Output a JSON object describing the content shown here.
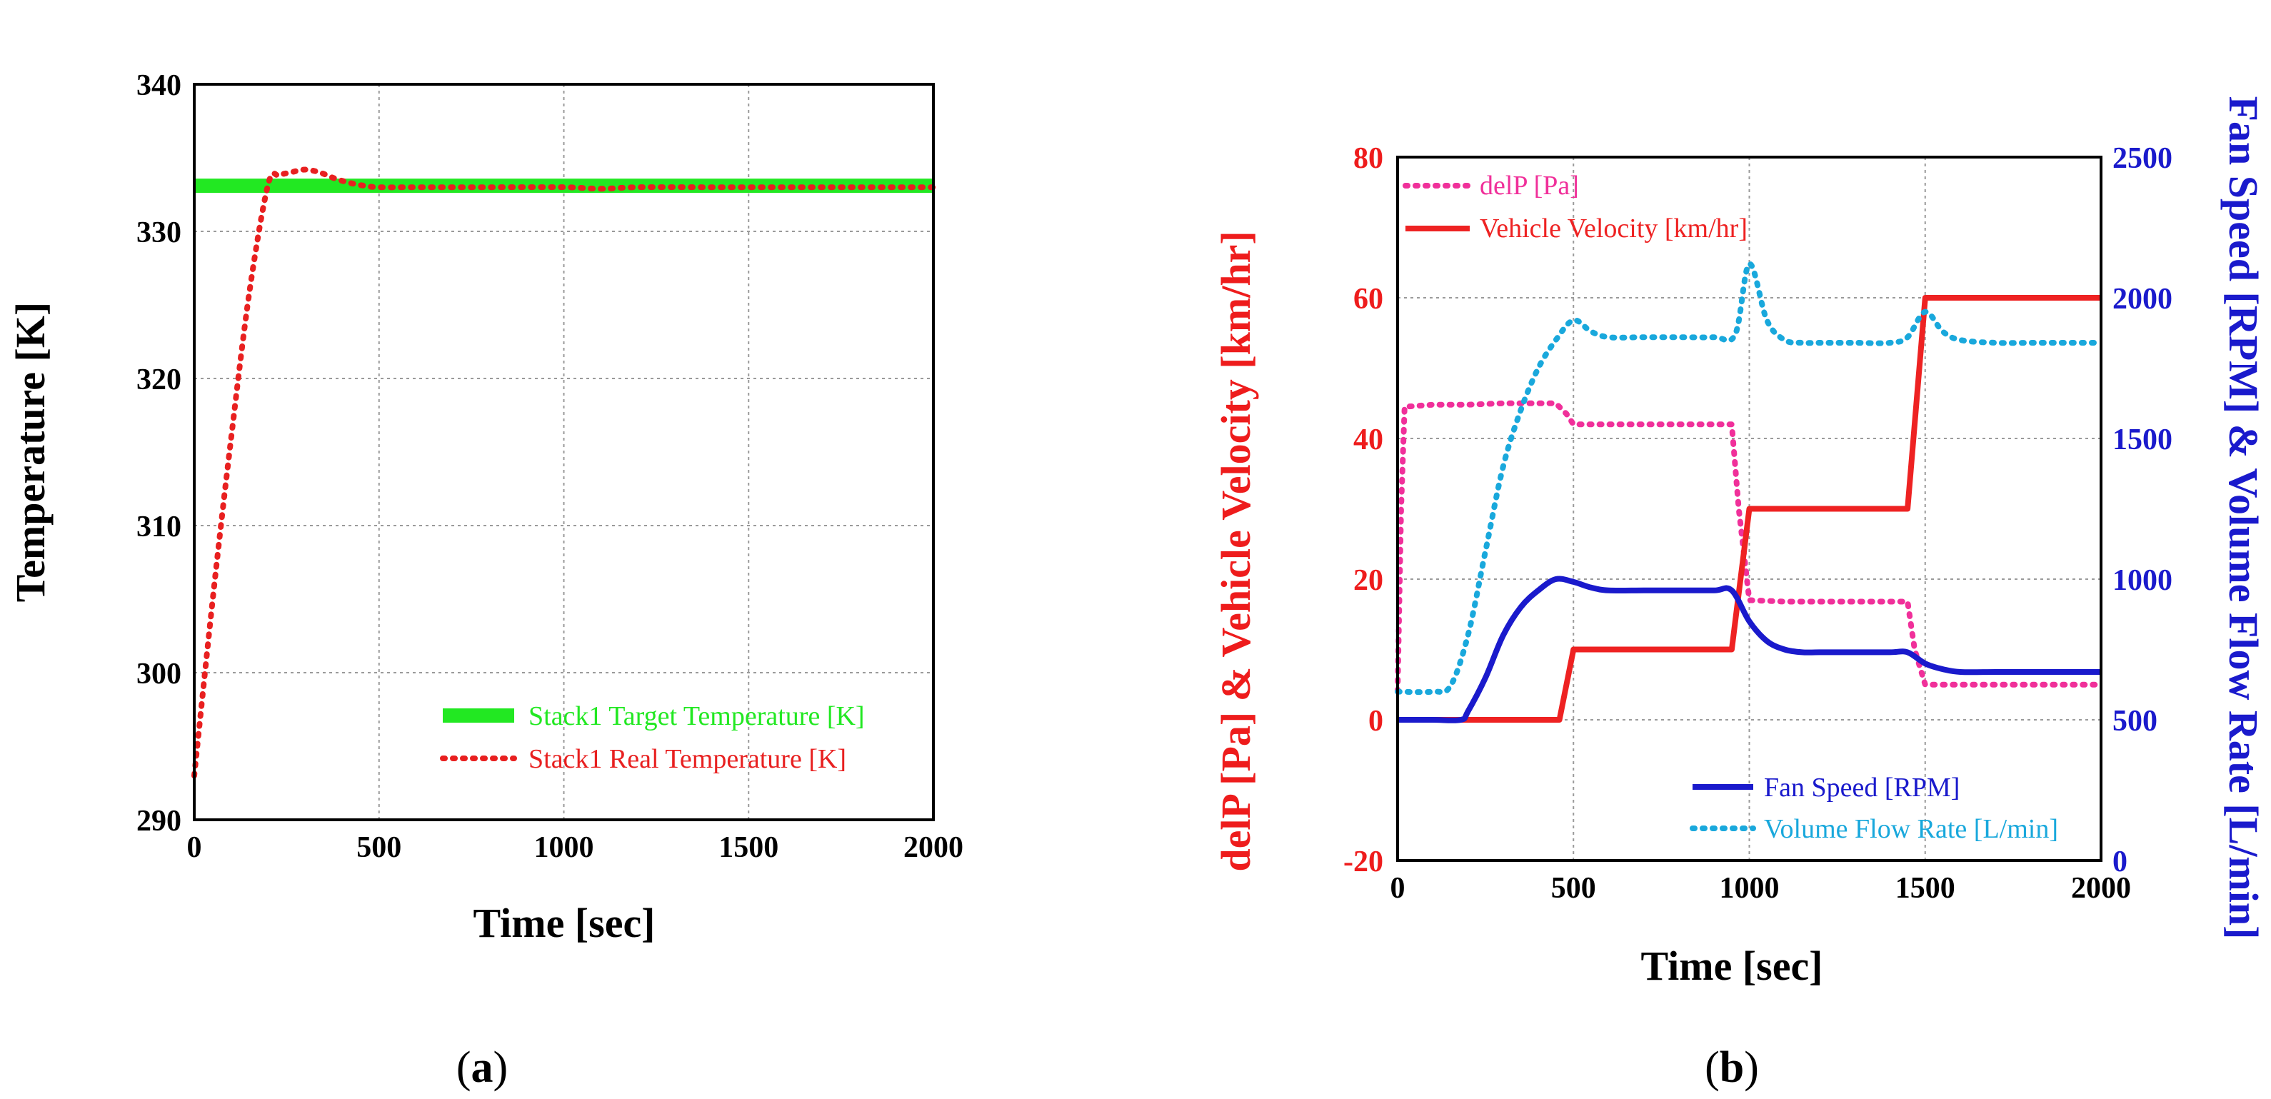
{
  "figure": {
    "caption_a": {
      "open": "(",
      "letter": "a",
      "close": ")"
    },
    "caption_b": {
      "open": "(",
      "letter": "b",
      "close": ")"
    }
  },
  "colors": {
    "target_green": "#22e822",
    "real_red": "#e82020",
    "delp_pink": "#f0309a",
    "velocity_red": "#ee2222",
    "fan_blue": "#1a1acc",
    "flow_cyan": "#19a8dc",
    "axis_red": "#ee1c1c",
    "axis_blue": "#1a1acc"
  },
  "chart_data": [
    {
      "id": "a",
      "type": "line",
      "title": "",
      "xlabel": "Time [sec]",
      "ylabel": "Temperature [K]",
      "xlim": [
        0,
        2000
      ],
      "ylim": [
        290,
        340
      ],
      "xticks": [
        0,
        500,
        1000,
        1500,
        2000
      ],
      "yticks": [
        290,
        300,
        310,
        320,
        330,
        340
      ],
      "grid": true,
      "legend_position": "bottom-right",
      "series": [
        {
          "name": "Stack1 Target Temperature [K]",
          "style": "solid-thick",
          "color": "#22e822",
          "x": [
            0,
            2000
          ],
          "y": [
            333.1,
            333.1
          ]
        },
        {
          "name": "Stack1 Real Temperature [K]",
          "style": "dotted",
          "color": "#e82020",
          "x": [
            0,
            50,
            100,
            150,
            200,
            230,
            260,
            300,
            340,
            380,
            420,
            460,
            500,
            600,
            800,
            1000,
            1100,
            1200,
            1400,
            1600,
            1800,
            2000
          ],
          "y": [
            293,
            305,
            316,
            326,
            333.2,
            333.8,
            334.0,
            334.2,
            334.0,
            333.6,
            333.3,
            333.1,
            333.0,
            333.0,
            333.0,
            333.0,
            332.9,
            333.0,
            333.0,
            333.0,
            333.0,
            333.0
          ]
        }
      ]
    },
    {
      "id": "b",
      "type": "line",
      "title": "",
      "xlabel": "Time [sec]",
      "ylabel_left": "delP [Pa] & Vehicle Velocity [km/hr]",
      "ylabel_right": "Fan Speed [RPM] & Volume Flow Rate [L/min]",
      "xlim": [
        0,
        2000
      ],
      "ylim_left": [
        -20,
        80
      ],
      "ylim_right": [
        0,
        2500
      ],
      "xticks": [
        0,
        500,
        1000,
        1500,
        2000
      ],
      "yticks_left": [
        -20,
        0,
        20,
        40,
        60,
        80
      ],
      "yticks_right": [
        0,
        500,
        1000,
        1500,
        2000,
        2500
      ],
      "grid": true,
      "legend_upper_position": "top-left",
      "legend_lower_position": "bottom-right",
      "series": [
        {
          "name": "delP [Pa]",
          "axis": "left",
          "style": "dotted",
          "color": "#f0309a",
          "x": [
            0,
            10,
            20,
            100,
            200,
            300,
            400,
            450,
            480,
            500,
            600,
            700,
            800,
            900,
            950,
            970,
            1000,
            1100,
            1200,
            1300,
            1400,
            1450,
            1470,
            1500,
            1600,
            1700,
            1800,
            1900,
            2000
          ],
          "y": [
            4,
            30,
            44.5,
            44.8,
            44.8,
            45,
            45,
            45,
            43.5,
            42,
            42,
            42,
            42,
            42,
            42,
            30,
            17,
            16.8,
            16.8,
            16.8,
            16.8,
            16.8,
            10,
            5,
            5,
            5,
            5,
            5,
            5
          ]
        },
        {
          "name": "Vehicle Velocity [km/hr]",
          "axis": "left",
          "style": "solid",
          "color": "#ee2222",
          "x": [
            0,
            460,
            500,
            950,
            1000,
            1450,
            1500,
            2000
          ],
          "y": [
            0,
            0,
            10,
            10,
            30,
            30,
            60,
            60
          ]
        },
        {
          "name": "Fan Speed [RPM]",
          "axis": "right",
          "style": "solid",
          "color": "#1a1acc",
          "x": [
            0,
            100,
            180,
            200,
            250,
            300,
            350,
            400,
            450,
            500,
            550,
            600,
            700,
            800,
            900,
            950,
            1000,
            1050,
            1100,
            1150,
            1200,
            1300,
            1400,
            1450,
            1500,
            1550,
            1600,
            1700,
            1800,
            1900,
            2000
          ],
          "y": [
            500,
            500,
            500,
            530,
            650,
            800,
            900,
            960,
            1000,
            990,
            970,
            960,
            960,
            960,
            960,
            960,
            850,
            780,
            750,
            740,
            740,
            740,
            740,
            740,
            700,
            680,
            670,
            670,
            670,
            670,
            670
          ],
          "curve": "smooth"
        },
        {
          "name": "Volume Flow Rate [L/min]",
          "axis": "right",
          "style": "dotted",
          "color": "#19a8dc",
          "x": [
            0,
            100,
            150,
            200,
            250,
            300,
            350,
            400,
            450,
            500,
            550,
            600,
            700,
            800,
            900,
            960,
            1000,
            1050,
            1100,
            1150,
            1200,
            1300,
            1400,
            1450,
            1500,
            1550,
            1600,
            1700,
            1800,
            1900,
            2000
          ],
          "y": [
            600,
            600,
            620,
            800,
            1100,
            1400,
            1600,
            1750,
            1850,
            1920,
            1880,
            1860,
            1860,
            1860,
            1860,
            1870,
            2120,
            1920,
            1850,
            1840,
            1840,
            1840,
            1840,
            1860,
            1950,
            1880,
            1850,
            1840,
            1840,
            1840,
            1840
          ],
          "curve": "smooth"
        }
      ]
    }
  ]
}
